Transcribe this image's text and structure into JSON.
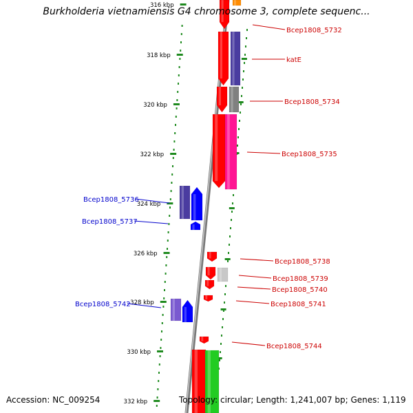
{
  "title": "Burkholderia vietnamiensis G4 chromosome 3, complete sequenc...",
  "footer": {
    "accession": "Accession: NC_009254",
    "topology": "Topology: circular; Length: 1,241,007 bp; Genes: 1,119"
  },
  "colors": {
    "backbone": "#8a8a8a",
    "tick": "#1e8a1e",
    "forward_label": "#cc0000",
    "reverse_label": "#0000cc",
    "red_feature": "#ff0000",
    "purple_feature": "#4a3ca0",
    "magenta_feature": "#ff1493",
    "gray_feature": "#808080",
    "light_gray_feature": "#c8c8c8",
    "green_feature": "#22cc22",
    "blue_feature": "#0000ff",
    "orange_feature": "#ff8c00"
  },
  "scale_labels": [
    "316 kbp",
    "318 kbp",
    "320 kbp",
    "322 kbp",
    "324 kbp",
    "326 kbp",
    "328 kbp",
    "330 kbp",
    "332 kbp"
  ],
  "gene_labels": [
    {
      "text": "Bcep1808_5732",
      "strand": "forward"
    },
    {
      "text": "katE",
      "strand": "forward"
    },
    {
      "text": "Bcep1808_5734",
      "strand": "forward"
    },
    {
      "text": "Bcep1808_5735",
      "strand": "forward"
    },
    {
      "text": "Bcep1808_5736",
      "strand": "reverse"
    },
    {
      "text": "Bcep1808_5737",
      "strand": "reverse"
    },
    {
      "text": "Bcep1808_5738",
      "strand": "forward"
    },
    {
      "text": "Bcep1808_5739",
      "strand": "forward"
    },
    {
      "text": "Bcep1808_5740",
      "strand": "forward"
    },
    {
      "text": "Bcep1808_5741",
      "strand": "forward"
    },
    {
      "text": "Bcep1808_5742",
      "strand": "reverse"
    },
    {
      "text": "Bcep1808_5744",
      "strand": "forward"
    }
  ]
}
